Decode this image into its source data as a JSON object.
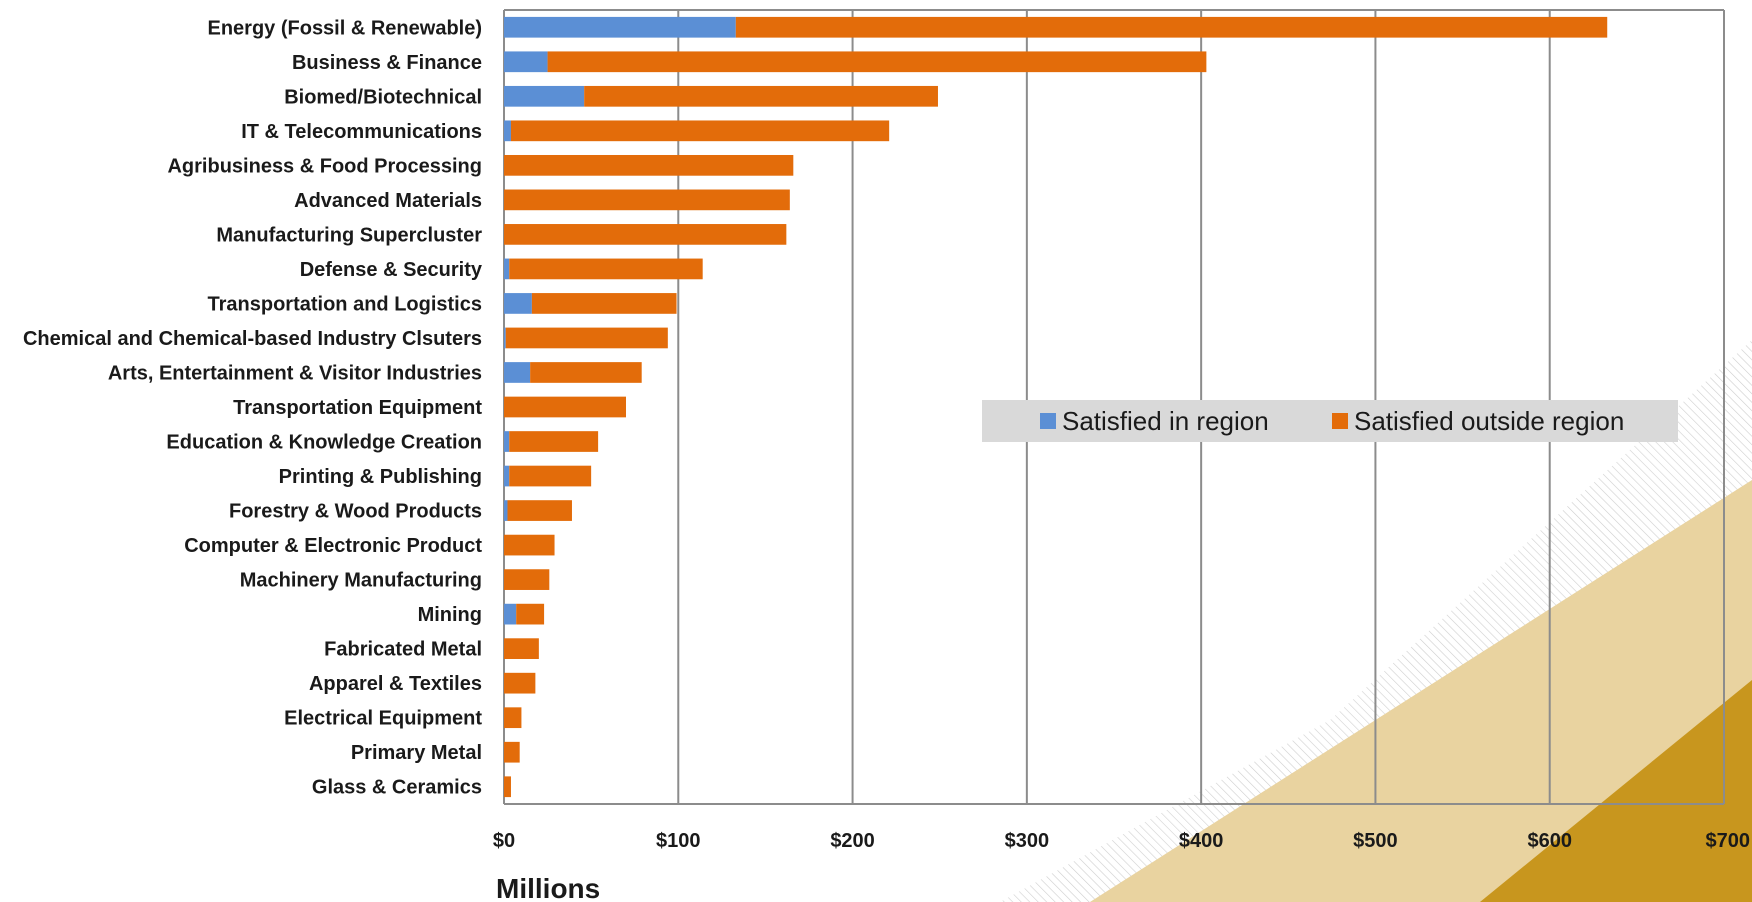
{
  "chart_data": {
    "type": "bar",
    "orientation": "horizontal",
    "stacked": true,
    "xlabel": "Millions",
    "xlim": [
      0,
      700
    ],
    "x_ticks": [
      "$0",
      "$100",
      "$200",
      "$300",
      "$400",
      "$500",
      "$600",
      "$700"
    ],
    "grid": true,
    "legend_position": "center-right",
    "categories": [
      "Energy (Fossil & Renewable)",
      "Business & Finance",
      "Biomed/Biotechnical",
      "IT & Telecommunications",
      "Agribusiness & Food Processing",
      "Advanced Materials",
      "Manufacturing Supercluster",
      "Defense & Security",
      "Transportation and Logistics",
      "Chemical and Chemical-based Industry Clsuters",
      "Arts, Entertainment & Visitor Industries",
      "Transportation Equipment",
      "Education & Knowledge Creation",
      "Printing & Publishing",
      "Forestry & Wood Products",
      "Computer & Electronic Product",
      "Machinery Manufacturing",
      "Mining",
      "Fabricated Metal",
      "Apparel & Textiles",
      "Electrical Equipment",
      "Primary Metal",
      "Glass & Ceramics"
    ],
    "series": [
      {
        "name": "Satisfied in region",
        "color": "#5b8fd5",
        "values": [
          133,
          25,
          46,
          4,
          0,
          0,
          0,
          3,
          16,
          1,
          15,
          0,
          3,
          3,
          2,
          0,
          0,
          7,
          0,
          0,
          0,
          0,
          0
        ]
      },
      {
        "name": "Satisfied outside region",
        "color": "#e36c0a",
        "values": [
          500,
          378,
          203,
          217,
          166,
          164,
          162,
          111,
          83,
          93,
          64,
          70,
          51,
          47,
          37,
          29,
          26,
          16,
          20,
          18,
          10,
          9,
          4
        ]
      }
    ]
  },
  "colors": {
    "grid": "#8c8c8c",
    "plot_border": "#8c8c8c",
    "legend_bg": "#d9d9d9",
    "decor_gold": "#c8961e",
    "decor_light": "#e9d3a0"
  }
}
